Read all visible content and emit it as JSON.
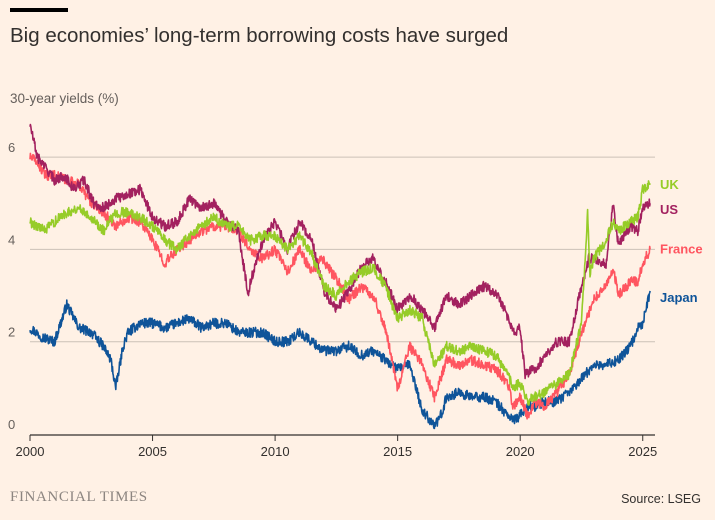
{
  "header": {
    "title": "Big economies’ long-term borrowing costs have surged",
    "ylabel": "30-year yields (%)"
  },
  "footer": {
    "logo": "FINANCIAL TIMES",
    "source": "Source: LSEG"
  },
  "colors": {
    "background": "#fff1e5",
    "grid": "#ccc1b7",
    "axis": "#33302e",
    "UK": "#96cc28",
    "US": "#a3215f",
    "France": "#ff5560",
    "Japan": "#0f5499"
  },
  "chart_data": {
    "type": "line",
    "xlabel": "",
    "ylabel": "30-year yields (%)",
    "xlim": [
      2000,
      2025.5
    ],
    "ylim": [
      0,
      6.5
    ],
    "x_ticks": [
      "2000",
      "2005",
      "2010",
      "2015",
      "2020",
      "2025"
    ],
    "y_ticks": [
      "0",
      "2",
      "4",
      "6"
    ],
    "grid": true,
    "legend": "inline labels at right end of each line",
    "series": [
      {
        "name": "US",
        "x": [
          2000.0,
          2000.3,
          2000.6,
          2001.0,
          2001.4,
          2001.8,
          2002.2,
          2002.6,
          2003.0,
          2003.5,
          2004.0,
          2004.5,
          2005.0,
          2005.5,
          2006.0,
          2006.5,
          2007.0,
          2007.5,
          2008.0,
          2008.5,
          2008.9,
          2009.0,
          2009.5,
          2010.0,
          2010.5,
          2011.0,
          2011.5,
          2012.0,
          2012.5,
          2013.0,
          2013.5,
          2014.0,
          2014.5,
          2015.0,
          2015.5,
          2016.0,
          2016.5,
          2017.0,
          2017.5,
          2018.0,
          2018.5,
          2018.9,
          2019.3,
          2019.7,
          2020.0,
          2020.2,
          2020.6,
          2021.0,
          2021.5,
          2022.0,
          2022.5,
          2022.8,
          2023.0,
          2023.5,
          2023.8,
          2024.0,
          2024.5,
          2024.8,
          2025.0,
          2025.3
        ],
        "values": [
          6.7,
          6.0,
          5.8,
          5.5,
          5.6,
          5.3,
          5.5,
          5.0,
          4.9,
          5.1,
          5.2,
          5.3,
          4.7,
          4.5,
          4.6,
          5.1,
          4.9,
          5.0,
          4.6,
          4.4,
          3.0,
          3.3,
          4.2,
          4.6,
          4.0,
          4.6,
          4.2,
          3.1,
          2.7,
          3.1,
          3.6,
          3.8,
          3.3,
          2.7,
          3.0,
          2.7,
          2.3,
          3.0,
          2.8,
          3.0,
          3.2,
          3.1,
          2.8,
          2.2,
          2.3,
          1.3,
          1.4,
          1.7,
          2.0,
          2.0,
          3.2,
          3.8,
          3.8,
          3.7,
          5.0,
          4.1,
          4.5,
          4.4,
          4.9,
          5.0
        ]
      },
      {
        "name": "UK",
        "x": [
          2000.0,
          2000.3,
          2000.6,
          2001.0,
          2001.5,
          2002.0,
          2002.5,
          2003.0,
          2003.5,
          2004.0,
          2004.5,
          2005.0,
          2005.5,
          2006.0,
          2006.5,
          2007.0,
          2007.5,
          2008.0,
          2008.5,
          2009.0,
          2009.5,
          2010.0,
          2010.5,
          2011.0,
          2011.5,
          2012.0,
          2012.5,
          2013.0,
          2013.5,
          2014.0,
          2014.5,
          2015.0,
          2015.5,
          2016.0,
          2016.5,
          2017.0,
          2017.5,
          2018.0,
          2018.5,
          2019.0,
          2019.5,
          2019.7,
          2020.0,
          2020.3,
          2020.6,
          2021.0,
          2021.5,
          2022.0,
          2022.5,
          2022.75,
          2022.85,
          2023.0,
          2023.5,
          2023.8,
          2024.0,
          2024.5,
          2024.8,
          2025.0,
          2025.3
        ],
        "values": [
          4.6,
          4.5,
          4.4,
          4.6,
          4.8,
          4.9,
          4.7,
          4.4,
          4.8,
          4.8,
          4.7,
          4.5,
          4.2,
          4.0,
          4.3,
          4.5,
          4.7,
          4.5,
          4.5,
          4.2,
          4.3,
          4.3,
          4.0,
          4.3,
          3.9,
          3.2,
          3.0,
          3.3,
          3.5,
          3.6,
          3.2,
          2.5,
          2.7,
          2.5,
          1.5,
          1.9,
          1.8,
          1.9,
          1.8,
          1.7,
          1.3,
          1.0,
          1.1,
          0.7,
          0.8,
          0.9,
          1.1,
          1.3,
          2.4,
          4.8,
          3.5,
          3.8,
          4.2,
          4.6,
          4.4,
          4.6,
          4.7,
          5.3,
          5.4
        ]
      },
      {
        "name": "France",
        "x": [
          2000.0,
          2000.3,
          2000.6,
          2001.0,
          2001.5,
          2002.0,
          2002.5,
          2003.0,
          2003.5,
          2004.0,
          2004.5,
          2005.0,
          2005.5,
          2006.0,
          2006.5,
          2007.0,
          2007.5,
          2008.0,
          2008.5,
          2009.0,
          2009.5,
          2010.0,
          2010.5,
          2011.0,
          2011.5,
          2011.9,
          2012.3,
          2012.7,
          2013.0,
          2013.5,
          2014.0,
          2014.5,
          2015.0,
          2015.5,
          2016.0,
          2016.5,
          2017.0,
          2017.5,
          2018.0,
          2018.5,
          2019.0,
          2019.5,
          2019.7,
          2020.0,
          2020.3,
          2020.6,
          2021.0,
          2021.5,
          2022.0,
          2022.5,
          2023.0,
          2023.5,
          2023.8,
          2024.0,
          2024.5,
          2024.8,
          2025.0,
          2025.3
        ],
        "values": [
          6.0,
          5.9,
          5.6,
          5.6,
          5.5,
          5.4,
          5.0,
          4.8,
          4.5,
          4.7,
          4.6,
          4.2,
          3.7,
          4.0,
          4.2,
          4.4,
          4.5,
          4.5,
          4.4,
          4.0,
          3.8,
          4.0,
          3.5,
          4.0,
          3.5,
          3.8,
          3.5,
          3.2,
          2.9,
          3.2,
          3.0,
          2.3,
          1.0,
          1.9,
          1.5,
          0.8,
          1.6,
          1.5,
          1.6,
          1.5,
          1.4,
          1.1,
          0.6,
          0.8,
          0.4,
          0.7,
          0.6,
          0.9,
          1.3,
          2.2,
          2.9,
          3.2,
          3.6,
          3.0,
          3.3,
          3.3,
          3.7,
          4.0
        ]
      },
      {
        "name": "Japan",
        "x": [
          2000.0,
          2000.5,
          2001.0,
          2001.5,
          2002.0,
          2002.5,
          2003.0,
          2003.3,
          2003.5,
          2003.8,
          2004.0,
          2004.5,
          2005.0,
          2005.5,
          2006.0,
          2006.5,
          2007.0,
          2007.5,
          2008.0,
          2008.5,
          2009.0,
          2009.5,
          2010.0,
          2010.5,
          2011.0,
          2011.5,
          2012.0,
          2012.5,
          2013.0,
          2013.5,
          2014.0,
          2014.5,
          2015.0,
          2015.5,
          2016.0,
          2016.5,
          2016.7,
          2017.0,
          2017.5,
          2018.0,
          2018.5,
          2019.0,
          2019.5,
          2019.7,
          2020.0,
          2020.3,
          2020.6,
          2021.0,
          2021.5,
          2022.0,
          2022.5,
          2023.0,
          2023.5,
          2024.0,
          2024.5,
          2024.8,
          2025.0,
          2025.3
        ],
        "values": [
          2.3,
          2.1,
          2.0,
          2.8,
          2.3,
          2.2,
          1.9,
          1.6,
          1.0,
          1.9,
          2.2,
          2.4,
          2.4,
          2.3,
          2.4,
          2.5,
          2.3,
          2.4,
          2.4,
          2.2,
          2.2,
          2.2,
          2.0,
          2.0,
          2.2,
          2.0,
          1.8,
          1.8,
          1.9,
          1.7,
          1.8,
          1.6,
          1.4,
          1.5,
          0.5,
          0.2,
          0.3,
          0.8,
          0.9,
          0.8,
          0.8,
          0.7,
          0.4,
          0.3,
          0.4,
          0.6,
          0.6,
          0.7,
          0.7,
          0.9,
          1.2,
          1.5,
          1.5,
          1.6,
          1.9,
          2.3,
          2.4,
          3.1
        ]
      }
    ]
  }
}
